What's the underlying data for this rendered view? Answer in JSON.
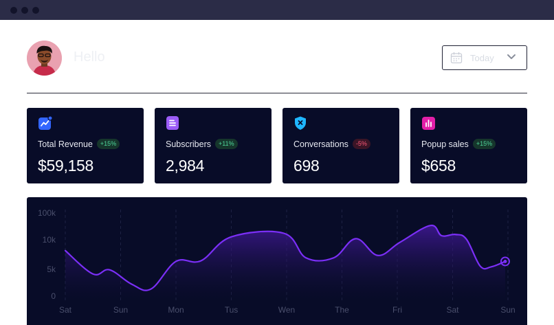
{
  "window": {
    "controls": [
      "close",
      "minimize",
      "maximize"
    ]
  },
  "header": {
    "greeting": "Hello",
    "avatar_icon": "user-avatar-icon",
    "date_select": {
      "value": "Today",
      "icon": "calendar-icon",
      "caret": "chevron-down-icon"
    }
  },
  "stats": [
    {
      "label": "Total Revenue",
      "change": "+15%",
      "trend": "up",
      "value": "$59,158",
      "icon": "trend-chart-icon",
      "color": "#3366ff"
    },
    {
      "label": "Subscribers",
      "change": "+11%",
      "trend": "up",
      "value": "2,984",
      "icon": "document-icon",
      "color": "#9b5cf6"
    },
    {
      "label": "Conversations",
      "change": "-5%",
      "trend": "down",
      "value": "698",
      "icon": "shield-icon",
      "color": "#1fb6ff"
    },
    {
      "label": "Popup sales",
      "change": "+15%",
      "trend": "up",
      "value": "$658",
      "icon": "bar-chart-icon",
      "color": "#e21fa8"
    }
  ],
  "colors": {
    "accent": "#7b2ff7",
    "card_bg": "#080c28",
    "positive": "#4fd69b",
    "negative": "#ff5a7a"
  },
  "chart_data": {
    "type": "area",
    "x_ticks": [
      "Sat",
      "Sun",
      "Mon",
      "Tus",
      "Wen",
      "The",
      "Fri",
      "Sat",
      "Sun"
    ],
    "y_ticks": [
      "100k",
      "10k",
      "5k",
      "0"
    ],
    "grid": "vertical-dashed",
    "series": [
      {
        "x": [
          0,
          0.5,
          0.8,
          1.2,
          1.55,
          2.0,
          2.45,
          3.0,
          3.95,
          4.35,
          4.85,
          5.25,
          5.65,
          6.05,
          6.6,
          6.8,
          7.05,
          7.25,
          7.5,
          7.7,
          7.95
        ],
        "y": [
          7.6,
          3.7,
          4.4,
          2.0,
          1.2,
          5.8,
          5.9,
          9.9,
          10.5,
          6.4,
          6.4,
          9.6,
          6.8,
          9.0,
          11.8,
          10.1,
          10.3,
          9.5,
          5.0,
          4.9,
          5.8
        ]
      }
    ]
  }
}
